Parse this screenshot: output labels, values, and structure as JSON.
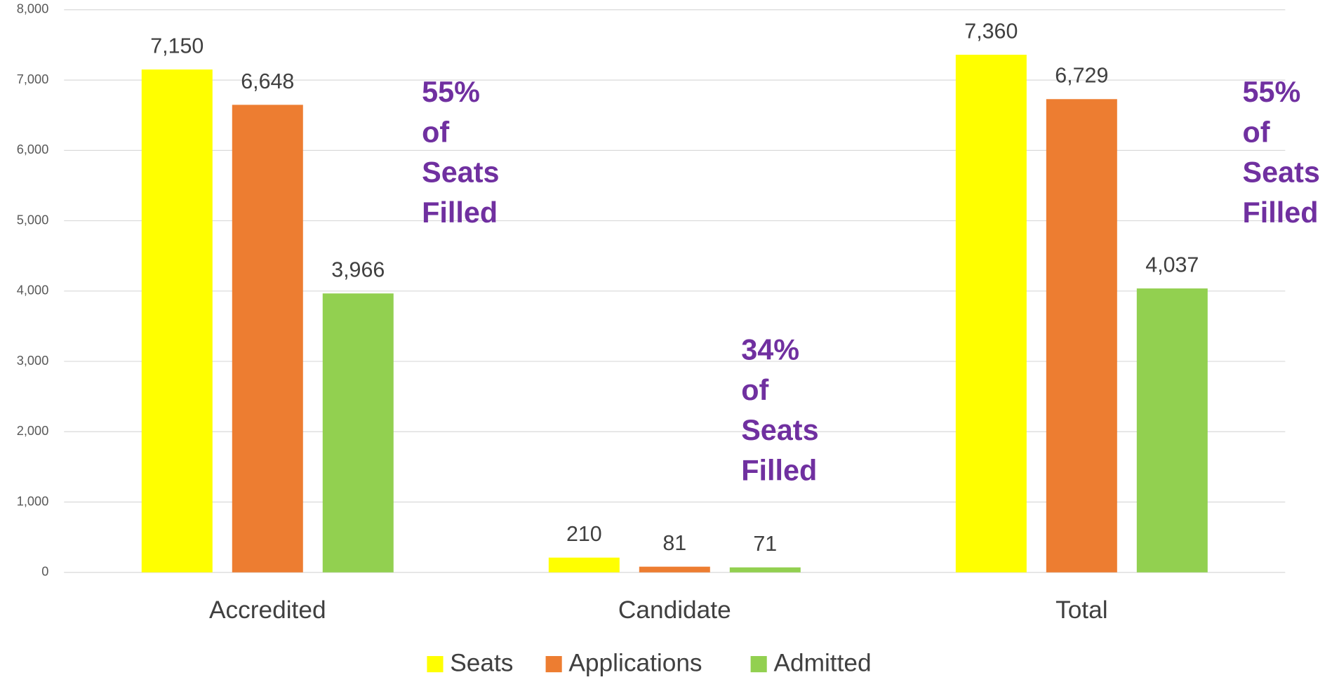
{
  "chart_data": {
    "type": "bar",
    "categories": [
      "Accredited",
      "Candidate",
      "Total"
    ],
    "series": [
      {
        "name": "Seats",
        "color": "#ffff00",
        "values": [
          7150,
          210,
          7360
        ],
        "value_labels": [
          "7,150",
          "210",
          "7,360"
        ]
      },
      {
        "name": "Applications",
        "color": "#ed7d31",
        "values": [
          6648,
          81,
          6729
        ],
        "value_labels": [
          "6,648",
          "81",
          "6,729"
        ]
      },
      {
        "name": "Admitted",
        "color": "#92d050",
        "values": [
          3966,
          71,
          4037
        ],
        "value_labels": [
          "3,966",
          "71",
          "4,037"
        ]
      }
    ],
    "ylim": [
      0,
      8000
    ],
    "yticks": [
      0,
      {
        "value": 1000,
        "label": "1,000"
      },
      {
        "value": 2000,
        "label": "2,000"
      },
      {
        "value": 3000,
        "label": "3,000"
      },
      {
        "value": 4000,
        "label": "4,000"
      },
      {
        "value": 5000,
        "label": "5,000"
      },
      {
        "value": 6000,
        "label": "6,000"
      },
      {
        "value": 7000,
        "label": "7,000"
      },
      {
        "value": 8000,
        "label": "8,000"
      }
    ],
    "grid": true,
    "legend": "bottom",
    "annotations": [
      {
        "lines": [
          "55%",
          "of",
          "Seats",
          "Filled"
        ]
      },
      {
        "lines": [
          "34%",
          "of",
          "Seats",
          "Filled"
        ]
      },
      {
        "lines": [
          "55%",
          "of",
          "Seats",
          "Filled"
        ]
      }
    ]
  }
}
